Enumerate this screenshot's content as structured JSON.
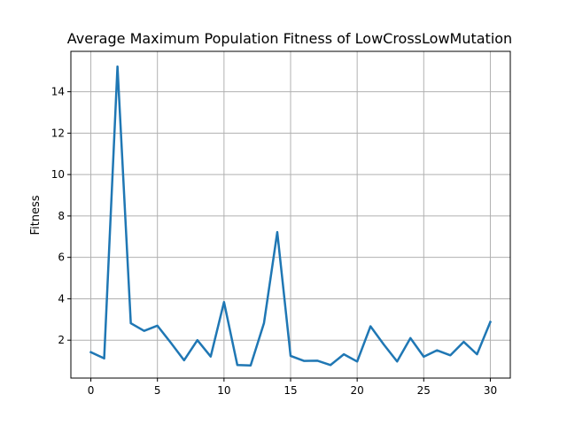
{
  "chart_data": {
    "type": "line",
    "title": "Average Maximum Population Fitness of LowCrossLowMutation",
    "xlabel": "",
    "ylabel": "Fitness",
    "xlim": [
      -1.5,
      31.5
    ],
    "ylim": [
      0.17,
      15.95
    ],
    "xticks": [
      0,
      5,
      10,
      15,
      20,
      25,
      30
    ],
    "yticks": [
      2,
      4,
      6,
      8,
      10,
      12,
      14
    ],
    "grid": true,
    "series": [
      {
        "color": "#1f77b4",
        "x": [
          0,
          1,
          2,
          3,
          4,
          5,
          6,
          7,
          8,
          9,
          10,
          11,
          12,
          13,
          14,
          15,
          16,
          17,
          18,
          19,
          20,
          21,
          22,
          23,
          24,
          25,
          26,
          27,
          28,
          29,
          30
        ],
        "y": [
          1.42,
          1.12,
          15.22,
          2.82,
          2.45,
          2.7,
          1.88,
          1.03,
          2.0,
          1.21,
          3.84,
          0.8,
          0.78,
          2.82,
          7.22,
          1.24,
          1.0,
          1.01,
          0.8,
          1.32,
          0.97,
          2.67,
          1.79,
          0.97,
          2.1,
          1.2,
          1.51,
          1.27,
          1.92,
          1.32,
          2.88
        ]
      }
    ]
  }
}
